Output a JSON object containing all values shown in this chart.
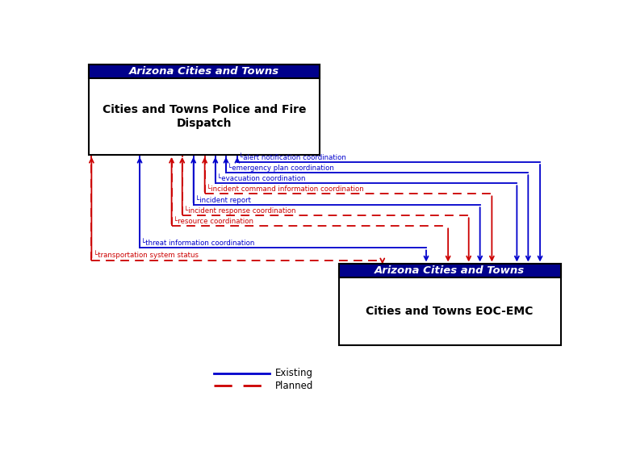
{
  "box1_header": "Arizona Cities and Towns",
  "box1_body": "Cities and Towns Police and Fire\nDispatch",
  "box2_header": "Arizona Cities and Towns",
  "box2_body": "Cities and Towns EOC-EMC",
  "header_bg": "#00008B",
  "header_text": "#ffffff",
  "existing_color": "#0000CC",
  "planned_color": "#CC0000",
  "existing_label": "Existing",
  "planned_label": "Planned",
  "flows": [
    {
      "label": "alert notification coordination",
      "style": "existing"
    },
    {
      "label": "emergency plan coordination",
      "style": "existing"
    },
    {
      "label": "evacuation coordination",
      "style": "existing"
    },
    {
      "label": "incident command information coordination",
      "style": "planned"
    },
    {
      "label": "incident report",
      "style": "existing"
    },
    {
      "label": "incident response coordination",
      "style": "planned"
    },
    {
      "label": "resource coordination",
      "style": "planned"
    },
    {
      "label": "threat information coordination",
      "style": "existing"
    },
    {
      "label": "transportation system status",
      "style": "planned"
    }
  ]
}
